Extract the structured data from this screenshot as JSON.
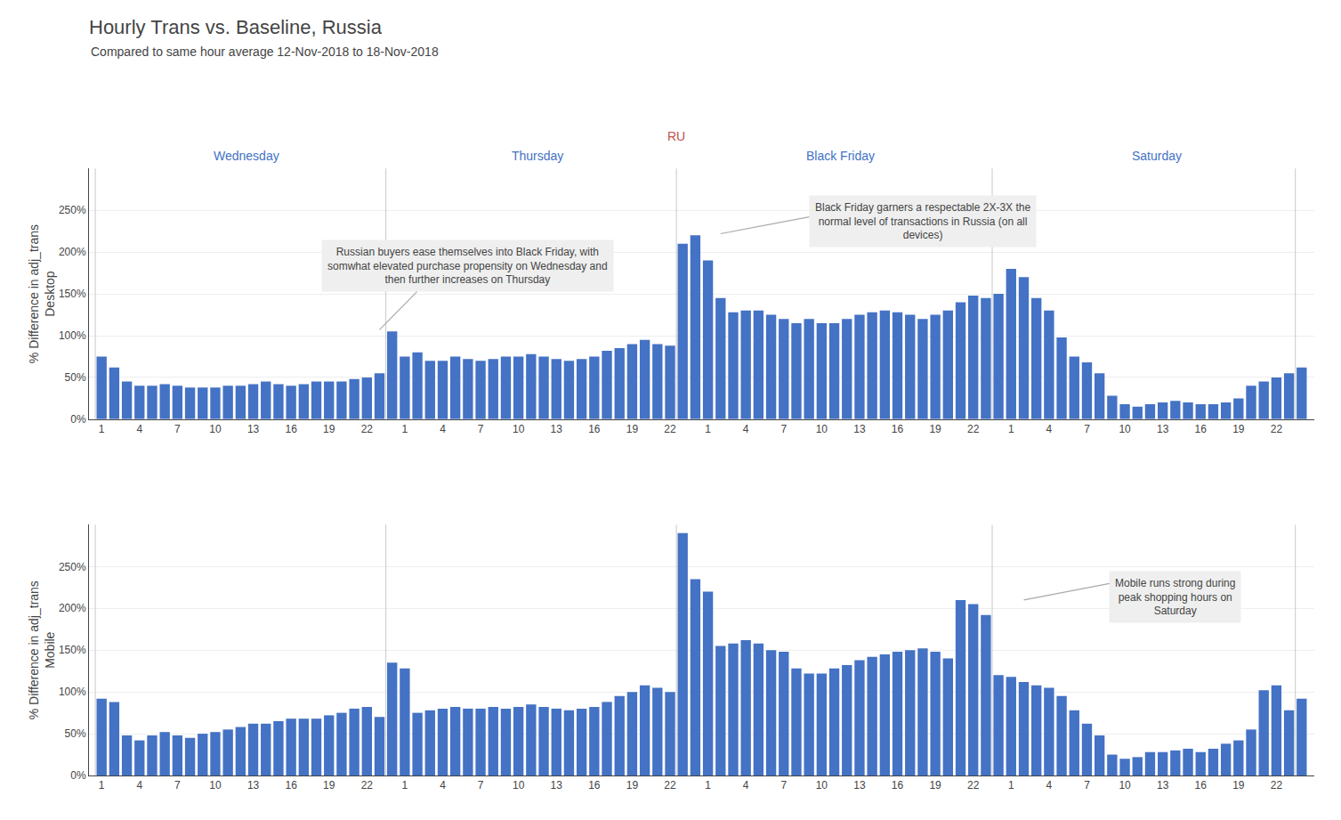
{
  "chart_data": [
    {
      "type": "bar",
      "title": "Hourly Trans vs. Baseline, Russia",
      "subtitle": "Compared to same hour average 12-Nov-2018 to 18-Nov-2018",
      "ylabel": "% Difference in adj_trans\nDesktop",
      "categories": [
        "1",
        null,
        null,
        "4",
        null,
        null,
        "7",
        null,
        null,
        "10",
        null,
        null,
        "13",
        null,
        null,
        "16",
        null,
        null,
        "19",
        null,
        null,
        "22",
        null,
        null,
        "1",
        null,
        null,
        "4",
        null,
        null,
        "7",
        null,
        null,
        "10",
        null,
        null,
        "13",
        null,
        null,
        "16",
        null,
        null,
        "19",
        null,
        null,
        "22",
        null,
        null,
        "1",
        null,
        null,
        "4",
        null,
        null,
        "7",
        null,
        null,
        "10",
        null,
        null,
        "13",
        null,
        null,
        "16",
        null,
        null,
        "19",
        null,
        null,
        "22",
        null,
        null,
        "1",
        null,
        null,
        "4",
        null,
        null,
        "7",
        null,
        null,
        "10",
        null,
        null,
        "13",
        null,
        null,
        "16",
        null,
        null,
        "19",
        null,
        null,
        "22",
        null,
        null
      ],
      "values": [
        75,
        62,
        45,
        40,
        40,
        42,
        40,
        38,
        38,
        38,
        40,
        40,
        42,
        45,
        42,
        40,
        42,
        45,
        45,
        45,
        48,
        50,
        55,
        105,
        75,
        80,
        70,
        70,
        75,
        72,
        70,
        72,
        75,
        75,
        78,
        75,
        72,
        70,
        72,
        75,
        82,
        85,
        90,
        95,
        90,
        88,
        210,
        220,
        190,
        145,
        128,
        130,
        130,
        125,
        120,
        115,
        120,
        115,
        115,
        120,
        125,
        128,
        130,
        128,
        125,
        120,
        125,
        130,
        140,
        148,
        145,
        150,
        180,
        170,
        145,
        130,
        98,
        75,
        68,
        55,
        28,
        18,
        15,
        18,
        20,
        22,
        20,
        18,
        18,
        20,
        25,
        40,
        45,
        50,
        55,
        62
      ],
      "color": "#4472c4",
      "ylim": [
        0,
        300
      ],
      "yticks": [
        {
          "value": 0,
          "label": "0%"
        },
        {
          "value": 50,
          "label": "50%"
        },
        {
          "value": 100,
          "label": "100%"
        },
        {
          "value": 150,
          "label": "150%"
        },
        {
          "value": 200,
          "label": "200%"
        },
        {
          "value": 250,
          "label": "250%"
        }
      ],
      "grid": true,
      "day_labels": [
        {
          "text": "Wednesday",
          "x": 11.5
        },
        {
          "text": "Thursday",
          "x": 34.5
        },
        {
          "text": "Black Friday",
          "x": 58.5
        },
        {
          "text": "Saturday",
          "x": 83.5
        }
      ],
      "day_boundaries": [
        -0.5,
        22.5,
        45.5,
        70.5,
        94.5
      ],
      "labels": [
        {
          "text": "RU",
          "x": 45.5,
          "color": "#c0504d"
        }
      ],
      "annotations": [
        {
          "text": "Russian buyers ease themselves into Black Friday, with\nsomwhat elevated purchase propensity on Wednesday and\nthen further increases on Thursday",
          "x": 22,
          "y": 107,
          "text_x": 29,
          "text_y": 215
        },
        {
          "text": "Black Friday garners a respectable 2X-3X the\nnormal level of transactions in Russia (on all\ndevices)",
          "x": 49,
          "y": 222,
          "text_x": 65,
          "text_y": 268
        }
      ]
    },
    {
      "type": "bar",
      "ylabel": "% Difference in adj_trans\nMobile",
      "categories": [
        "1",
        null,
        null,
        "4",
        null,
        null,
        "7",
        null,
        null,
        "10",
        null,
        null,
        "13",
        null,
        null,
        "16",
        null,
        null,
        "19",
        null,
        null,
        "22",
        null,
        null,
        "1",
        null,
        null,
        "4",
        null,
        null,
        "7",
        null,
        null,
        "10",
        null,
        null,
        "13",
        null,
        null,
        "16",
        null,
        null,
        "19",
        null,
        null,
        "22",
        null,
        null,
        "1",
        null,
        null,
        "4",
        null,
        null,
        "7",
        null,
        null,
        "10",
        null,
        null,
        "13",
        null,
        null,
        "16",
        null,
        null,
        "19",
        null,
        null,
        "22",
        null,
        null,
        "1",
        null,
        null,
        "4",
        null,
        null,
        "7",
        null,
        null,
        "10",
        null,
        null,
        "13",
        null,
        null,
        "16",
        null,
        null,
        "19",
        null,
        null,
        "22",
        null,
        null
      ],
      "values": [
        92,
        88,
        48,
        42,
        48,
        52,
        48,
        45,
        50,
        52,
        55,
        58,
        62,
        62,
        65,
        68,
        68,
        68,
        72,
        75,
        80,
        82,
        70,
        135,
        128,
        75,
        78,
        80,
        82,
        80,
        80,
        82,
        80,
        82,
        85,
        82,
        80,
        78,
        80,
        82,
        88,
        95,
        100,
        108,
        105,
        100,
        290,
        235,
        220,
        155,
        158,
        162,
        158,
        150,
        148,
        128,
        122,
        122,
        128,
        132,
        138,
        142,
        145,
        148,
        150,
        152,
        148,
        140,
        210,
        205,
        192,
        120,
        118,
        112,
        108,
        105,
        95,
        78,
        62,
        48,
        25,
        20,
        22,
        28,
        28,
        30,
        32,
        28,
        32,
        38,
        42,
        55,
        102,
        108,
        78,
        92
      ],
      "color": "#4472c4",
      "ylim": [
        0,
        300
      ],
      "yticks": [
        {
          "value": 0,
          "label": "0%"
        },
        {
          "value": 50,
          "label": "50%"
        },
        {
          "value": 100,
          "label": "100%"
        },
        {
          "value": 150,
          "label": "150%"
        },
        {
          "value": 200,
          "label": "200%"
        },
        {
          "value": 250,
          "label": "250%"
        }
      ],
      "grid": true,
      "day_boundaries": [
        -0.5,
        22.5,
        45.5,
        70.5,
        94.5
      ],
      "annotations": [
        {
          "text": "Mobile runs strong during\npeak shopping hours on\nSaturday",
          "x": 73,
          "y": 210,
          "text_x": 85,
          "text_y": 245
        }
      ]
    }
  ]
}
